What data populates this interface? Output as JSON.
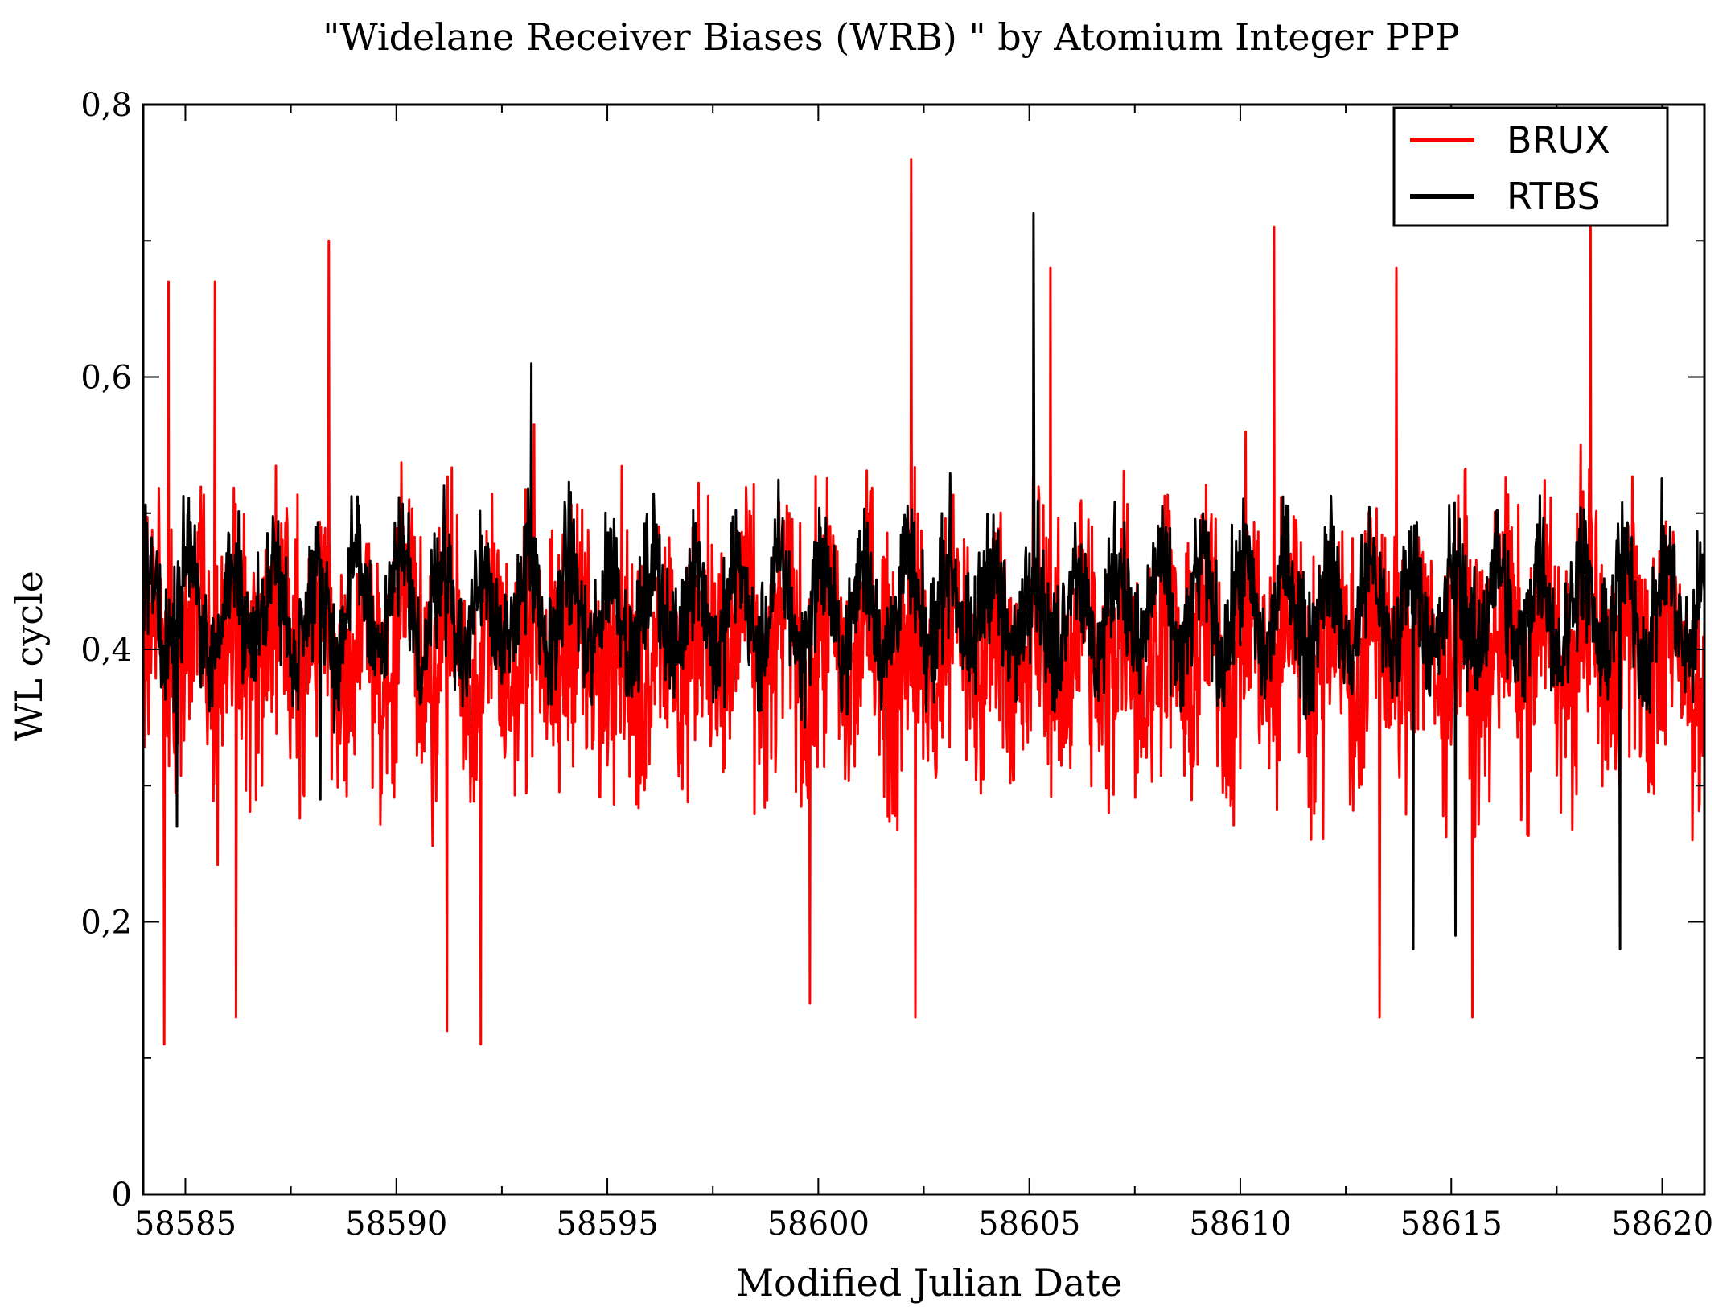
{
  "chart_data": {
    "type": "line",
    "title": "\"Widelane Receiver Biases (WRB) \" by Atomium Integer PPP",
    "xlabel": "Modified Julian Date",
    "ylabel": "WL cycle",
    "xlim": [
      58584,
      58621
    ],
    "ylim": [
      0,
      0.8
    ],
    "x_ticks": [
      58585,
      58590,
      58595,
      58600,
      58605,
      58610,
      58615,
      58620
    ],
    "x_tick_labels": [
      "58585",
      "58590",
      "58595",
      "58600",
      "58605",
      "58610",
      "58615",
      "58620"
    ],
    "y_ticks": [
      0,
      0.2,
      0.4,
      0.6,
      0.8
    ],
    "y_tick_labels": [
      "0",
      "0,2",
      "0,4",
      "0,6",
      "0,8"
    ],
    "grid": false,
    "legend_position": "top-right",
    "series": [
      {
        "name": "BRUX",
        "color": "#ff0000",
        "noise_note": "dense high-frequency series; band approx 0.22-0.58 with spikes",
        "mean": 0.4,
        "typical_low": 0.24,
        "typical_high": 0.58,
        "spikes_high": [
          [
            58584.6,
            0.67
          ],
          [
            58585.7,
            0.67
          ],
          [
            58588.4,
            0.7
          ],
          [
            58602.2,
            0.76
          ],
          [
            58605.5,
            0.68
          ],
          [
            58610.8,
            0.71
          ],
          [
            58613.7,
            0.68
          ],
          [
            58618.3,
            0.71
          ]
        ],
        "spikes_low": [
          [
            58584.5,
            0.11
          ],
          [
            58586.2,
            0.13
          ],
          [
            58591.2,
            0.12
          ],
          [
            58592.0,
            0.11
          ],
          [
            58599.8,
            0.14
          ],
          [
            58602.3,
            0.13
          ],
          [
            58613.3,
            0.13
          ],
          [
            58615.5,
            0.13
          ]
        ]
      },
      {
        "name": "RTBS",
        "color": "#000000",
        "noise_note": "dense high-frequency series; band approx 0.33-0.53",
        "mean": 0.43,
        "typical_low": 0.35,
        "typical_high": 0.52,
        "spikes_high": [
          [
            58593.2,
            0.61
          ],
          [
            58605.1,
            0.72
          ]
        ],
        "spikes_low": [
          [
            58584.8,
            0.27
          ],
          [
            58588.2,
            0.29
          ],
          [
            58614.1,
            0.18
          ],
          [
            58615.1,
            0.19
          ],
          [
            58619.0,
            0.18
          ]
        ]
      }
    ]
  }
}
